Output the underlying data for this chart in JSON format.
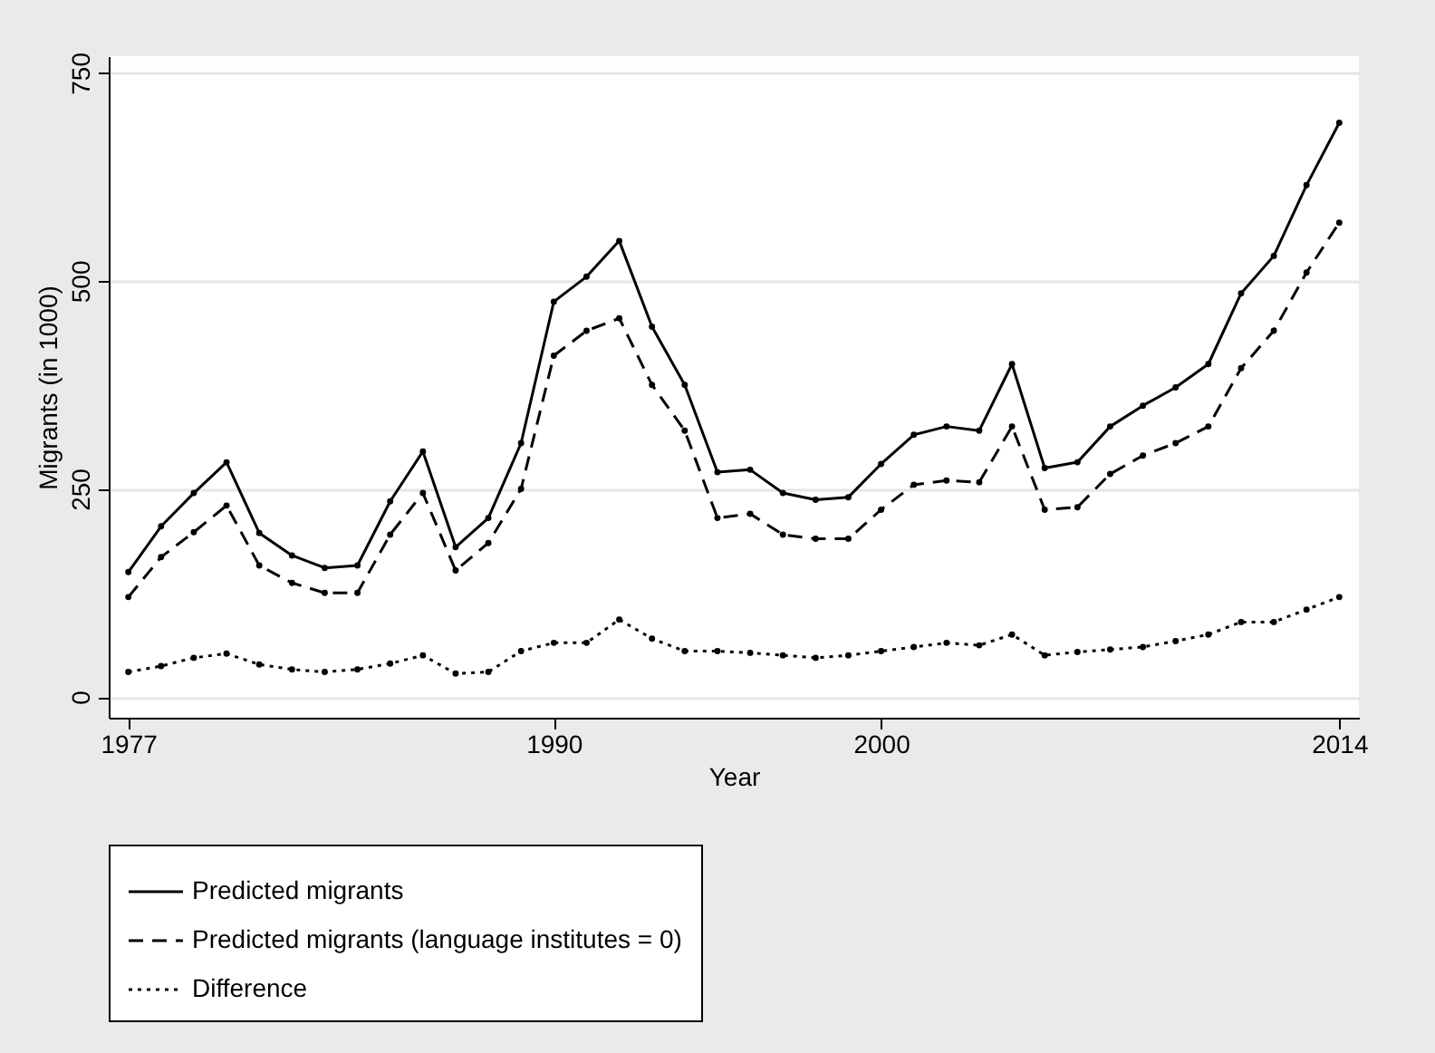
{
  "chart_data": {
    "type": "line",
    "xlabel": "Year",
    "ylabel": "Migrants (in 1000)",
    "x": [
      1977,
      1978,
      1979,
      1980,
      1981,
      1982,
      1983,
      1984,
      1985,
      1986,
      1987,
      1988,
      1989,
      1990,
      1991,
      1992,
      1993,
      1994,
      1995,
      1996,
      1997,
      1998,
      1999,
      2000,
      2001,
      2002,
      2003,
      2004,
      2005,
      2006,
      2007,
      2008,
      2009,
      2010,
      2011,
      2012,
      2013,
      2014
    ],
    "series": [
      {
        "name": "Predicted migrants",
        "color": "#000000",
        "line_style": "solid",
        "values": [
          150,
          205,
          245,
          282,
          197,
          170,
          155,
          158,
          235,
          295,
          180,
          215,
          305,
          475,
          505,
          548,
          445,
          375,
          270,
          273,
          245,
          237,
          240,
          280,
          315,
          325,
          320,
          400,
          275,
          282,
          325,
          350,
          372,
          400,
          485,
          530,
          615,
          690
        ]
      },
      {
        "name": "Predicted migrants (language institutes = 0)",
        "color": "#000000",
        "line_style": "dashed",
        "values": [
          120,
          168,
          198,
          230,
          158,
          137,
          125,
          125,
          195,
          245,
          152,
          185,
          250,
          410,
          440,
          455,
          375,
          320,
          215,
          220,
          195,
          190,
          190,
          225,
          255,
          260,
          258,
          325,
          225,
          228,
          268,
          290,
          305,
          325,
          395,
          440,
          510,
          570
        ]
      },
      {
        "name": "Difference",
        "color": "#000000",
        "line_style": "dotted",
        "values": [
          30,
          37,
          47,
          52,
          39,
          33,
          30,
          33,
          40,
          50,
          28,
          30,
          55,
          65,
          65,
          93,
          70,
          55,
          55,
          53,
          50,
          47,
          50,
          55,
          60,
          65,
          62,
          75,
          50,
          54,
          57,
          60,
          67,
          75,
          90,
          90,
          105,
          120
        ]
      }
    ],
    "xlim": [
      1976.4,
      2014.6
    ],
    "xticks": [
      1977,
      1990,
      2000,
      2014
    ],
    "ylim": [
      -25,
      770
    ],
    "yticks": [
      0,
      250,
      500,
      750
    ],
    "grid": "y",
    "legend": "bottom",
    "marker": "circle"
  }
}
